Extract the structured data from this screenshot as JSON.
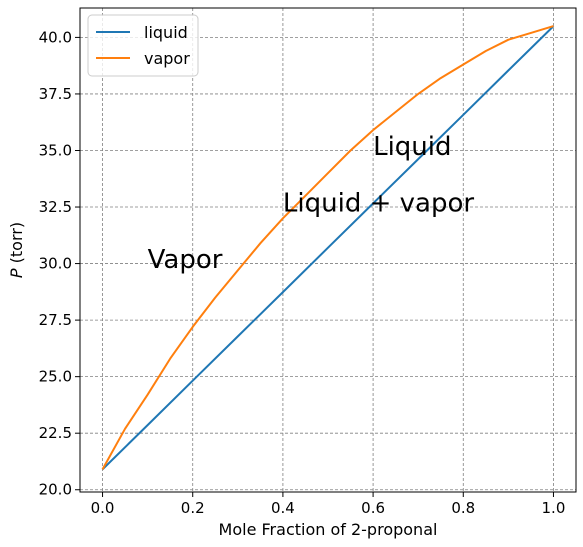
{
  "chart_data": {
    "type": "line",
    "xlabel": "Mole Fraction of 2-proponal",
    "ylabel": "P (torr)",
    "ylabel_symbol": "P",
    "ylabel_unit": " (torr)",
    "xlim": [
      -0.05,
      1.05
    ],
    "ylim": [
      19.9,
      41.3
    ],
    "xticks": [
      0.0,
      0.2,
      0.4,
      0.6,
      0.8,
      1.0
    ],
    "xtick_labels": [
      "0.0",
      "0.2",
      "0.4",
      "0.6",
      "0.8",
      "1.0"
    ],
    "yticks": [
      20.0,
      22.5,
      25.0,
      27.5,
      30.0,
      32.5,
      35.0,
      37.5,
      40.0
    ],
    "ytick_labels": [
      "20.0",
      "22.5",
      "25.0",
      "27.5",
      "30.0",
      "32.5",
      "35.0",
      "37.5",
      "40.0"
    ],
    "grid": true,
    "legend_position": "top-left",
    "series": [
      {
        "name": "liquid",
        "color": "#1f77b4",
        "x": [
          0.0,
          0.1,
          0.2,
          0.3,
          0.4,
          0.5,
          0.6,
          0.7,
          0.8,
          0.9,
          1.0
        ],
        "y": [
          20.9,
          22.86,
          24.82,
          26.78,
          28.74,
          30.7,
          32.66,
          34.62,
          36.58,
          38.54,
          40.5
        ]
      },
      {
        "name": "vapor",
        "color": "#ff7f0e",
        "x": [
          0.0,
          0.05,
          0.1,
          0.15,
          0.2,
          0.25,
          0.3,
          0.35,
          0.4,
          0.45,
          0.5,
          0.55,
          0.6,
          0.65,
          0.7,
          0.75,
          0.8,
          0.85,
          0.9,
          0.95,
          1.0
        ],
        "y": [
          20.9,
          22.7,
          24.2,
          25.8,
          27.2,
          28.5,
          29.7,
          30.9,
          32.0,
          33.0,
          34.0,
          35.0,
          35.9,
          36.7,
          37.5,
          38.2,
          38.8,
          39.4,
          39.9,
          40.2,
          40.5
        ]
      }
    ],
    "annotations": [
      {
        "text": "Liquid",
        "x": 0.6,
        "y": 34.8
      },
      {
        "text": "Liquid + vapor",
        "x": 0.4,
        "y": 32.3
      },
      {
        "text": "Vapor",
        "x": 0.1,
        "y": 29.8
      }
    ]
  }
}
